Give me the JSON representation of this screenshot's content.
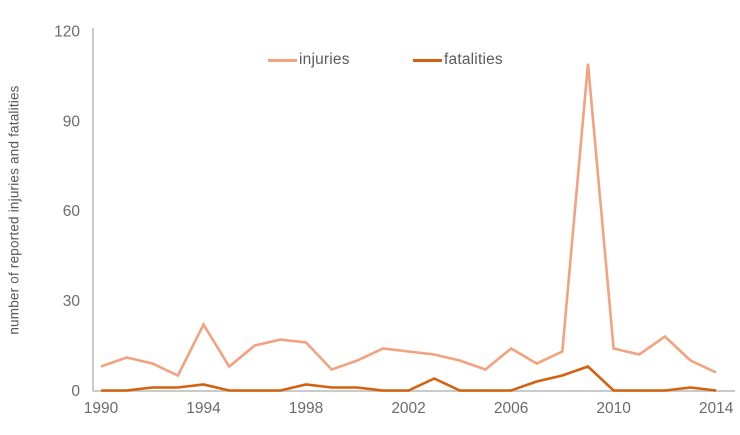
{
  "chart_data": {
    "type": "line",
    "title": "",
    "ylabel": "number of reported injuries and fatalities",
    "xlabel": "",
    "x": [
      1990,
      1991,
      1992,
      1993,
      1994,
      1995,
      1996,
      1997,
      1998,
      1999,
      2000,
      2001,
      2002,
      2003,
      2004,
      2005,
      2006,
      2007,
      2008,
      2009,
      2010,
      2011,
      2012,
      2013,
      2014
    ],
    "series": [
      {
        "name": "injuries",
        "color": "#f2a27e",
        "values": [
          8,
          11,
          9,
          5,
          22,
          8,
          15,
          17,
          16,
          7,
          10,
          14,
          13,
          12,
          10,
          7,
          14,
          9,
          13,
          109,
          14,
          12,
          18,
          10,
          6
        ]
      },
      {
        "name": "fatalities",
        "color": "#d2620f",
        "values": [
          0,
          0,
          1,
          1,
          2,
          0,
          0,
          0,
          2,
          1,
          1,
          0,
          0,
          4,
          0,
          0,
          0,
          3,
          5,
          8,
          0,
          0,
          0,
          1,
          0
        ]
      }
    ],
    "yticks": [
      0,
      30,
      60,
      90,
      120
    ],
    "xticks": [
      1990,
      1994,
      1998,
      2002,
      2006,
      2010,
      2014
    ],
    "ylim": [
      0,
      120
    ],
    "xlim": [
      1990,
      2014
    ],
    "grid": false,
    "legend_position": "top-center",
    "axis_color": "#c9cacb",
    "tick_label_color": "#6a6b6e",
    "ylabel_color": "#57585a"
  }
}
